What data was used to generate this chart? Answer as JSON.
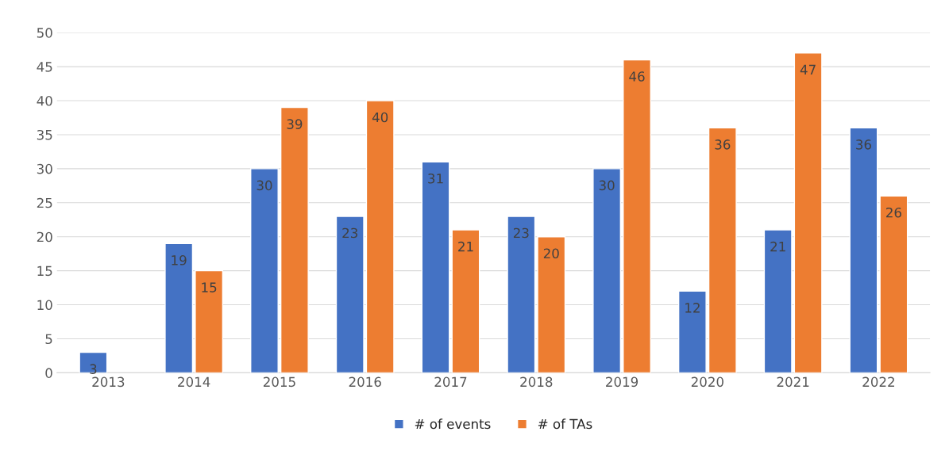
{
  "chart_data": {
    "type": "bar",
    "categories": [
      "2013",
      "2014",
      "2015",
      "2016",
      "2017",
      "2018",
      "2019",
      "2020",
      "2021",
      "2022"
    ],
    "series": [
      {
        "name": "# of events",
        "color": "#4472c4",
        "values": [
          3,
          19,
          30,
          23,
          31,
          23,
          30,
          12,
          21,
          36
        ]
      },
      {
        "name": "# of TAs",
        "color": "#ed7d31",
        "values": [
          null,
          15,
          39,
          40,
          21,
          20,
          46,
          36,
          47,
          26
        ]
      }
    ],
    "ylim": [
      0,
      50
    ],
    "yticks": [
      0,
      5,
      10,
      15,
      20,
      25,
      30,
      35,
      40,
      45,
      50
    ],
    "grid": "y",
    "legend": "bottom",
    "data_labels": true
  }
}
